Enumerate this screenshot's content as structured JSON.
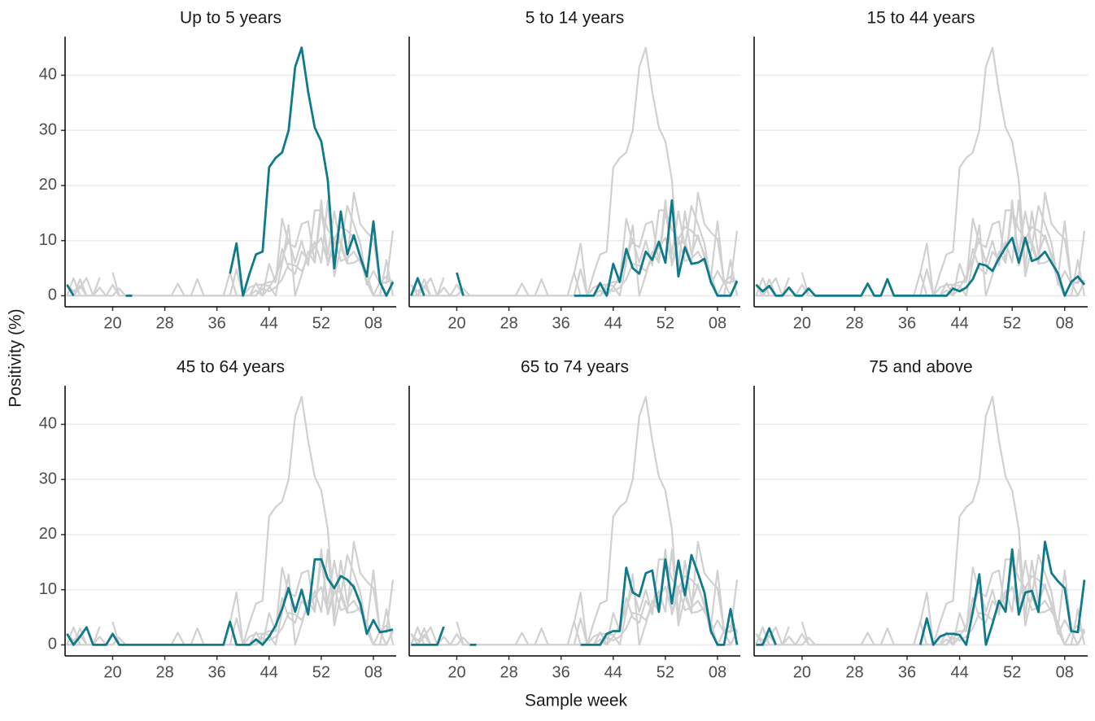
{
  "chart_data": {
    "type": "line",
    "x_label": "Sample week",
    "y_label": "Positivity (%)",
    "x": [
      13,
      14,
      15,
      16,
      17,
      18,
      19,
      20,
      21,
      22,
      23,
      24,
      25,
      26,
      27,
      28,
      29,
      30,
      31,
      32,
      33,
      34,
      35,
      36,
      37,
      38,
      39,
      40,
      41,
      42,
      43,
      44,
      45,
      46,
      47,
      48,
      49,
      50,
      51,
      52,
      53,
      54,
      55,
      56,
      57,
      58,
      59,
      60,
      61,
      62,
      63
    ],
    "xlim": [
      12.7,
      63.5
    ],
    "xticks": [
      20,
      28,
      36,
      44,
      52,
      {
        "value": 60,
        "label": "08"
      }
    ],
    "ylim": [
      -2,
      47
    ],
    "yticks": [
      0,
      10,
      20,
      30,
      40
    ],
    "grid": true,
    "other_color": "#d0d0d0",
    "series": [
      {
        "name": "Up to 5 years",
        "color": "#0f7a8a",
        "values": [
          2,
          0,
          null,
          null,
          null,
          null,
          null,
          null,
          null,
          0,
          0,
          null,
          null,
          null,
          null,
          null,
          null,
          null,
          null,
          null,
          null,
          null,
          null,
          null,
          null,
          4,
          9.5,
          0,
          4,
          7.5,
          8,
          23.3,
          25,
          26,
          30,
          41.5,
          45,
          37,
          30.5,
          28,
          21,
          5,
          15.3,
          7.5,
          11,
          7,
          3.5,
          13.5,
          2.5,
          0,
          2.5
        ]
      },
      {
        "name": "5 to 14 years",
        "color": "#0f7a8a",
        "values": [
          0,
          3.2,
          0,
          null,
          null,
          null,
          null,
          4.2,
          0,
          null,
          null,
          null,
          null,
          null,
          null,
          null,
          null,
          null,
          null,
          null,
          null,
          null,
          null,
          null,
          null,
          0,
          0,
          0,
          0,
          2.3,
          0,
          5.8,
          2.5,
          8.5,
          5,
          4,
          8,
          6.5,
          9.8,
          6,
          17.3,
          3.5,
          8.8,
          5.8,
          6,
          6.7,
          2.5,
          0,
          0,
          0,
          2.7
        ]
      },
      {
        "name": "15 to 44 years",
        "color": "#0f7a8a",
        "values": [
          2,
          0.8,
          1.8,
          0,
          0,
          1.5,
          0,
          0,
          1.3,
          0,
          0,
          0,
          0,
          0,
          0,
          0,
          0,
          2.2,
          0,
          0,
          3,
          0,
          0,
          0,
          0,
          0,
          0,
          0,
          0,
          0,
          1.3,
          0.8,
          1.5,
          3,
          5.8,
          5.5,
          4.5,
          6.8,
          8.8,
          10.5,
          6,
          10.5,
          6.3,
          6.8,
          8,
          6,
          4,
          0,
          2.5,
          3.5,
          2
        ]
      },
      {
        "name": "45 to 64 years",
        "color": "#0f7a8a",
        "values": [
          2,
          0,
          1.5,
          3.2,
          0,
          0,
          0,
          2,
          0,
          0,
          0,
          0,
          0,
          0,
          0,
          0,
          0,
          0,
          0,
          0,
          0,
          0,
          0,
          0,
          0,
          4.2,
          0,
          0,
          0,
          1,
          0,
          1.5,
          3.5,
          6.5,
          10.3,
          6,
          10,
          5.5,
          15.5,
          15.5,
          12,
          10.3,
          12.5,
          11.8,
          10.5,
          7.5,
          2,
          4.5,
          2.3,
          2.5,
          2.8
        ]
      },
      {
        "name": "65 to 74 years",
        "color": "#0f7a8a",
        "values": [
          0,
          0,
          0,
          0,
          0,
          3.3,
          null,
          null,
          null,
          0,
          0,
          null,
          null,
          null,
          null,
          null,
          null,
          null,
          null,
          null,
          null,
          null,
          null,
          null,
          null,
          null,
          0,
          0,
          0,
          0,
          2,
          2.5,
          2.5,
          14,
          9.5,
          8.8,
          13,
          13.5,
          6,
          15.5,
          7.5,
          15.3,
          9,
          16.3,
          13,
          9.5,
          2.5,
          0,
          0,
          6.5,
          0
        ]
      },
      {
        "name": "75 and above",
        "color": "#0f7a8a",
        "values": [
          0,
          0,
          3,
          0,
          null,
          null,
          null,
          null,
          null,
          null,
          null,
          null,
          null,
          null,
          null,
          null,
          null,
          null,
          null,
          null,
          null,
          null,
          null,
          null,
          null,
          0,
          4.8,
          0,
          1.5,
          2,
          2,
          1.8,
          0,
          6,
          12.8,
          0,
          3.8,
          8,
          6,
          17.3,
          5.5,
          9.5,
          9.8,
          6,
          18.7,
          13,
          11.5,
          10.3,
          2.5,
          2.3,
          11.8
        ]
      }
    ]
  }
}
